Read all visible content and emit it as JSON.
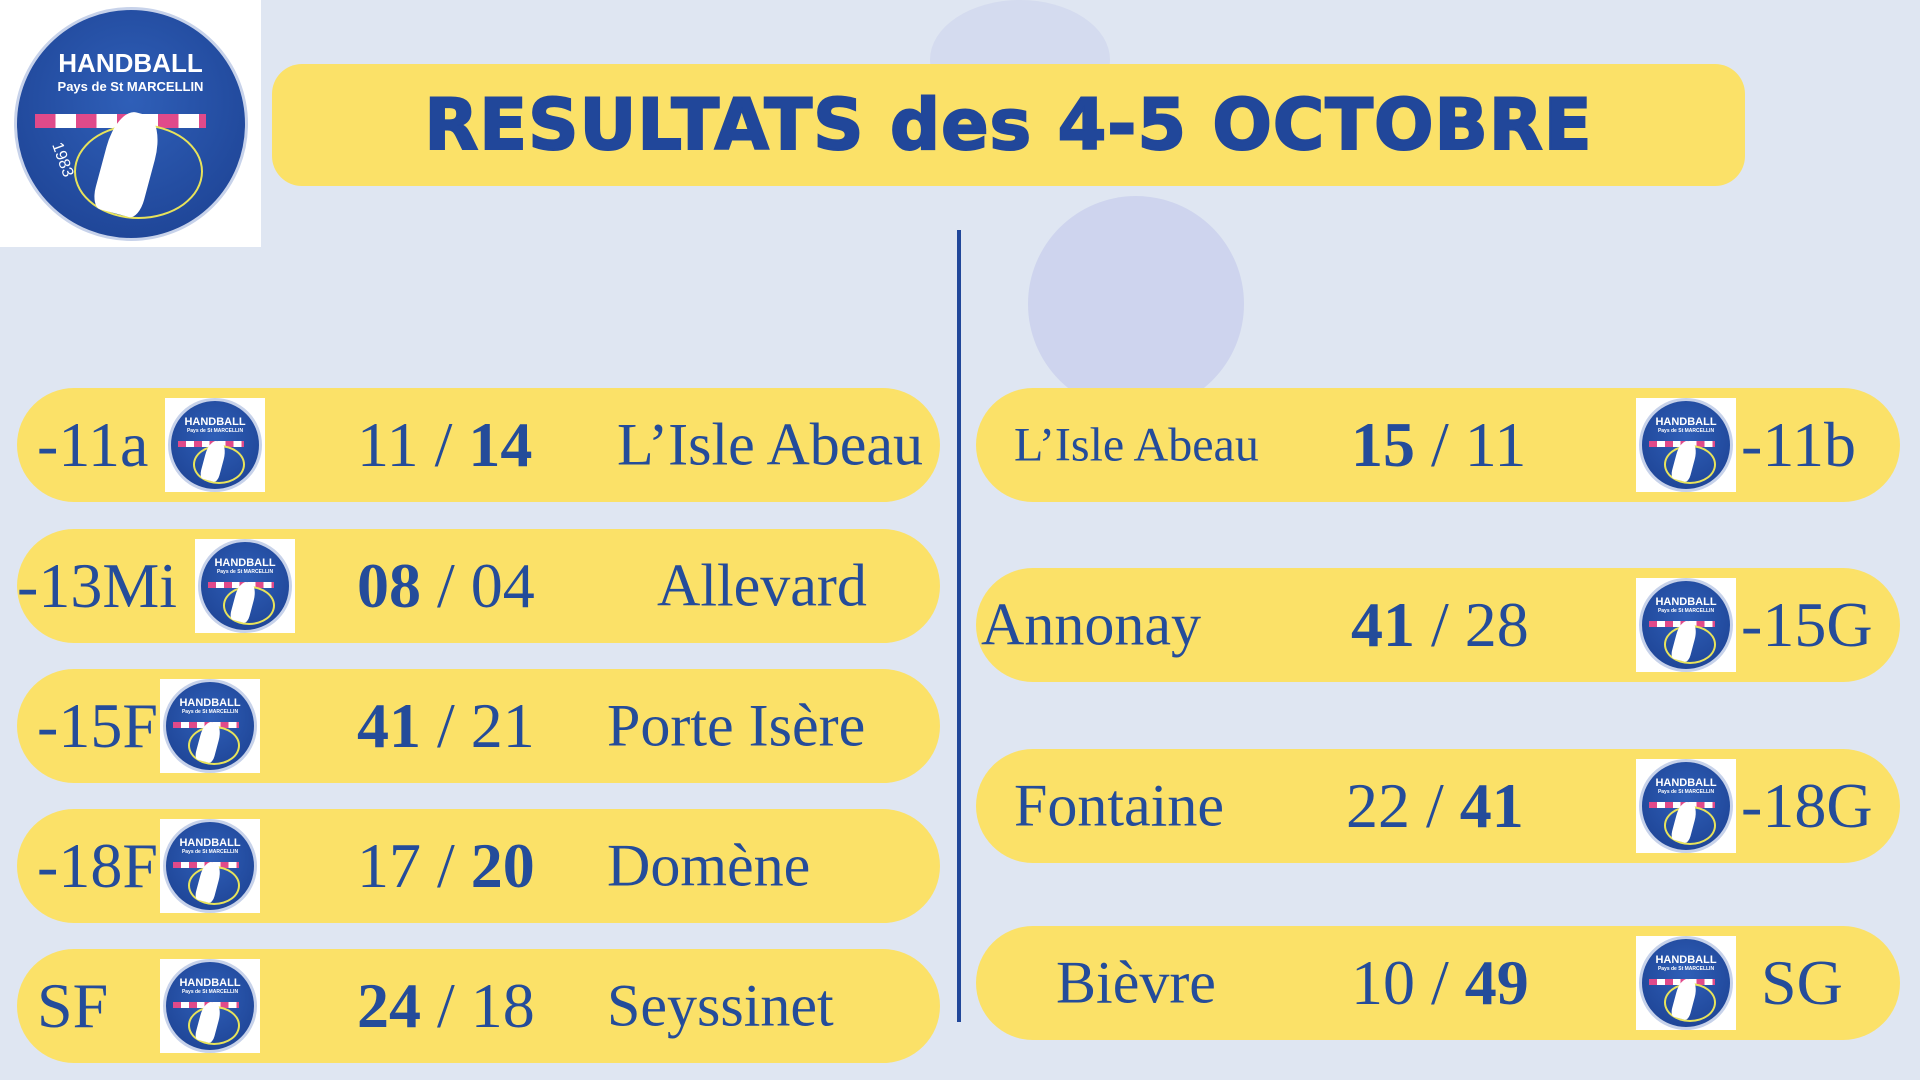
{
  "header": {
    "title": "RESULTATS des 4-5 OCTOBRE",
    "logo_text": [
      "HANDBALL",
      "Pays de St MARCELLIN",
      "1983"
    ]
  },
  "colors": {
    "background": "#dfe6f2",
    "pill": "#fbe168",
    "text": "#244c9a"
  },
  "left_results": [
    {
      "team": "-11a",
      "home": "11",
      "away": "14",
      "bold": "away",
      "opponent": "L’Isle Abeau"
    },
    {
      "team": "-13Mi",
      "home": "08",
      "away": "04",
      "bold": "home",
      "opponent": "Allevard"
    },
    {
      "team": "-15F",
      "home": "41",
      "away": "21",
      "bold": "home",
      "opponent": "Porte Isère"
    },
    {
      "team": "-18F",
      "home": "17",
      "away": "20",
      "bold": "away",
      "opponent": "Domène"
    },
    {
      "team": "SF",
      "home": "24",
      "away": "18",
      "bold": "home",
      "opponent": "Seyssinet"
    }
  ],
  "right_results": [
    {
      "opponent": "L’Isle Abeau",
      "home": "15",
      "away": "11",
      "bold": "home",
      "team": "-11b"
    },
    {
      "opponent": "Annonay",
      "home": "41",
      "away": "28",
      "bold": "home",
      "team": "-15G"
    },
    {
      "opponent": "Fontaine",
      "home": "22",
      "away": "41",
      "bold": "away",
      "team": "-18G"
    },
    {
      "opponent": "Bièvre",
      "home": "10",
      "away": "49",
      "bold": "away",
      "team": "SG"
    }
  ]
}
